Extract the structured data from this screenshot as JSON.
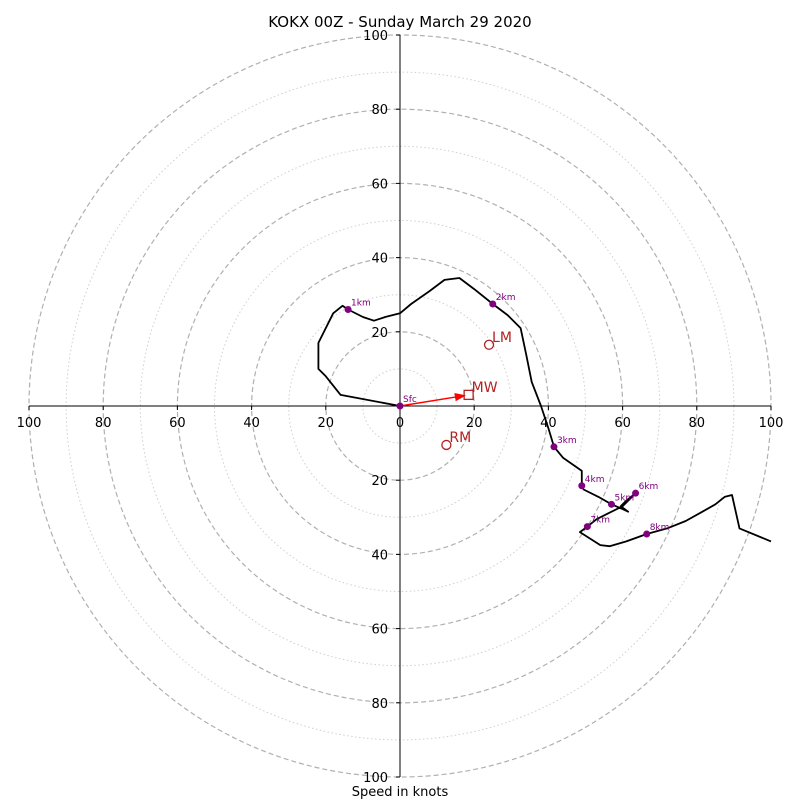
{
  "chart_data": {
    "type": "hodograph",
    "title": "KOKX 00Z - Sunday March 29 2020",
    "xlabel": "Speed in knots",
    "range": [
      -100,
      100
    ],
    "ring_step": 10,
    "x_tick_labels": [
      "100",
      "80",
      "60",
      "40",
      "20",
      "0",
      "20",
      "40",
      "60",
      "80",
      "100"
    ],
    "x_tick_values": [
      -100,
      -80,
      -60,
      -40,
      -20,
      0,
      20,
      40,
      60,
      80,
      100
    ],
    "y_tick_labels": [
      "100",
      "80",
      "60",
      "40",
      "20",
      "20",
      "40",
      "60",
      "80",
      "100"
    ],
    "y_tick_values": [
      100,
      80,
      60,
      40,
      20,
      -20,
      -40,
      -60,
      -80,
      -100
    ],
    "grid": true,
    "trace": [
      [
        0,
        0
      ],
      [
        -16,
        3
      ],
      [
        -20,
        8
      ],
      [
        -22,
        10
      ],
      [
        -22,
        17
      ],
      [
        -18,
        25
      ],
      [
        -15.5,
        27
      ],
      [
        -14,
        26
      ],
      [
        -10,
        24
      ],
      [
        -7,
        23
      ],
      [
        -4,
        24
      ],
      [
        0,
        25
      ],
      [
        3,
        27.5
      ],
      [
        8,
        31
      ],
      [
        12,
        34
      ],
      [
        16,
        34.5
      ],
      [
        20,
        31.5
      ],
      [
        25,
        27.5
      ],
      [
        29,
        24.5
      ],
      [
        32.5,
        21
      ],
      [
        34,
        14
      ],
      [
        35.5,
        6.5
      ],
      [
        38,
        0
      ],
      [
        40,
        -6
      ],
      [
        41.5,
        -11
      ],
      [
        44,
        -14
      ],
      [
        49,
        -17.5
      ],
      [
        49,
        -21.5
      ],
      [
        49.5,
        -22.5
      ],
      [
        53.5,
        -24.5
      ],
      [
        57,
        -26.5
      ],
      [
        60.5,
        -28
      ],
      [
        61.5,
        -28.5
      ],
      [
        59.5,
        -27
      ],
      [
        61,
        -25.5
      ],
      [
        63.5,
        -23.5
      ],
      [
        60,
        -27
      ],
      [
        56,
        -29
      ],
      [
        53,
        -30.5
      ],
      [
        50.5,
        -32.5
      ],
      [
        48.5,
        -34
      ],
      [
        54,
        -37.5
      ],
      [
        56.5,
        -37.8
      ],
      [
        61,
        -36.5
      ],
      [
        66.5,
        -34.5
      ],
      [
        72,
        -33
      ],
      [
        77,
        -31
      ],
      [
        81.5,
        -28.5
      ],
      [
        85,
        -26.5
      ],
      [
        87.5,
        -24.5
      ],
      [
        89.5,
        -24
      ],
      [
        91.5,
        -33
      ],
      [
        100,
        -36.5
      ]
    ],
    "height_markers": [
      {
        "label": "Sfc",
        "u": 0,
        "v": 0
      },
      {
        "label": "1km",
        "u": -14,
        "v": 26
      },
      {
        "label": "2km",
        "u": 25,
        "v": 27.5
      },
      {
        "label": "3km",
        "u": 41.5,
        "v": -11
      },
      {
        "label": "4km",
        "u": 49,
        "v": -21.5
      },
      {
        "label": "5km",
        "u": 57,
        "v": -26.5
      },
      {
        "label": "6km",
        "u": 63.5,
        "v": -23.5
      },
      {
        "label": "7km",
        "u": 50.5,
        "v": -32.5
      },
      {
        "label": "8km",
        "u": 66.5,
        "v": -34.5
      }
    ],
    "storm_motions": [
      {
        "label": "LM",
        "u": 24,
        "v": 16.5,
        "marker": "circle"
      },
      {
        "label": "RM",
        "u": 12.5,
        "v": -10.5,
        "marker": "circle"
      },
      {
        "label": "MW",
        "u": 18.5,
        "v": 3,
        "marker": "square"
      }
    ],
    "mean_wind_vector": {
      "u": 18.5,
      "v": 3
    },
    "colors": {
      "trace": "#000000",
      "markers": "#800080",
      "storm_motion": "#b22222",
      "mean_wind_arrow": "#ff0000",
      "grid": "#b0b0b0",
      "axes": "#000000"
    }
  }
}
